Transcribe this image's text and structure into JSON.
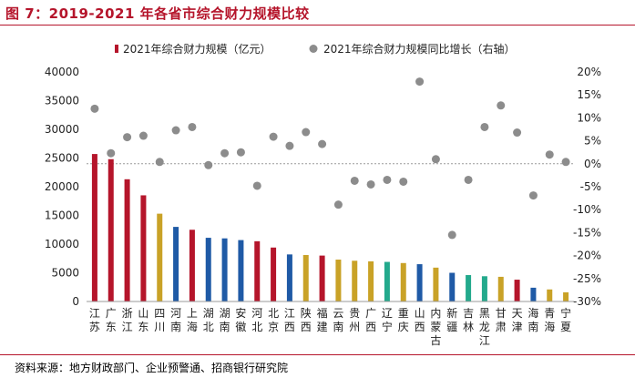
{
  "title": "图 7：2019-2021 年各省市综合财力规模比较",
  "source": "资料来源：地方财政部门、企业预警通、招商银行研究院",
  "colors": {
    "title": "#b5152b",
    "red": "#b5152b",
    "gold": "#c9a227",
    "blue": "#1f5aa6",
    "teal": "#23a98c",
    "dot": "#8c8c8c",
    "refline": "#9a9a9a"
  },
  "chart_data": {
    "type": "bar",
    "categories": [
      "江苏",
      "广东",
      "浙江",
      "山东",
      "四川",
      "河南",
      "上海",
      "湖北",
      "湖南",
      "安徽",
      "河北",
      "北京",
      "江西",
      "陕西",
      "福建",
      "云南",
      "贵州",
      "广西",
      "辽宁",
      "重庆",
      "山西",
      "内蒙古",
      "新疆",
      "吉林",
      "黑龙江",
      "甘肃",
      "天津",
      "海南",
      "青海",
      "宁夏"
    ],
    "series": [
      {
        "name": "2021年综合财力规模（亿元）",
        "axis": "left",
        "values": [
          25700,
          24800,
          21300,
          18500,
          15300,
          13000,
          12500,
          11100,
          11000,
          10700,
          10500,
          9400,
          8200,
          8100,
          8000,
          7300,
          7100,
          7000,
          6900,
          6700,
          6500,
          5900,
          5000,
          4600,
          4400,
          4300,
          3800,
          2400,
          2100,
          1600
        ],
        "color_groups": [
          "red",
          "red",
          "red",
          "red",
          "gold",
          "blue",
          "red",
          "blue",
          "blue",
          "blue",
          "red",
          "red",
          "blue",
          "gold",
          "red",
          "gold",
          "gold",
          "gold",
          "teal",
          "gold",
          "blue",
          "gold",
          "blue",
          "teal",
          "teal",
          "gold",
          "red",
          "blue",
          "gold",
          "gold"
        ]
      },
      {
        "name": "2021年综合财力规模同比增长（右轴）",
        "axis": "right",
        "type": "scatter",
        "values": [
          12.0,
          2.3,
          5.8,
          6.1,
          0.4,
          7.3,
          8.0,
          -0.3,
          2.3,
          2.5,
          -4.8,
          5.9,
          3.9,
          6.9,
          4.3,
          -8.9,
          -3.7,
          -4.5,
          -3.5,
          -3.9,
          17.9,
          1.0,
          -15.5,
          -3.5,
          8.0,
          12.7,
          6.8,
          -6.9,
          2.0,
          0.4
        ]
      }
    ],
    "left_axis": {
      "min": 0,
      "max": 40000,
      "step": 5000,
      "ticks": [
        "0",
        "5000",
        "10000",
        "15000",
        "20000",
        "25000",
        "30000",
        "35000",
        "40000"
      ]
    },
    "right_axis": {
      "min": -30,
      "max": 20,
      "step": 5,
      "ticks": [
        "-30%",
        "-25%",
        "-20%",
        "-15%",
        "-10%",
        "-5%",
        "0%",
        "5%",
        "10%",
        "15%",
        "20%"
      ]
    },
    "reference_line": 0,
    "legend": {
      "position": "top",
      "items": [
        "2021年综合财力规模（亿元）",
        "2021年综合财力规模同比增长（右轴）"
      ]
    }
  }
}
